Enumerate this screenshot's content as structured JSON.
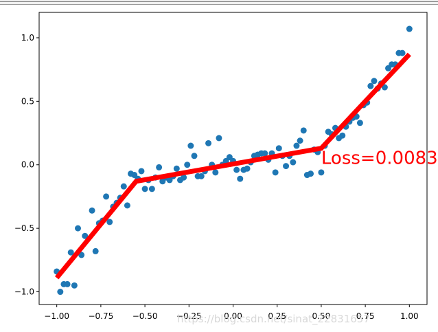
{
  "chart_data": {
    "type": "scatter",
    "title": "",
    "xlabel": "",
    "ylabel": "",
    "xlim": [
      -1.1,
      1.1
    ],
    "ylim": [
      -1.1,
      1.2
    ],
    "x_ticks": [
      "−1.00",
      "−0.75",
      "−0.50",
      "−0.25",
      "0.00",
      "0.25",
      "0.50",
      "0.75",
      "1.00"
    ],
    "x_tick_values": [
      -1.0,
      -0.75,
      -0.5,
      -0.25,
      0.0,
      0.25,
      0.5,
      0.75,
      1.0
    ],
    "y_ticks": [
      "−1.0",
      "−0.5",
      "0.0",
      "0.5",
      "1.0"
    ],
    "y_tick_values": [
      -1.0,
      -0.5,
      0.0,
      0.5,
      1.0
    ],
    "grid": false,
    "scatter": {
      "color": "#1f77b4",
      "points": [
        [
          -1.0,
          -0.84
        ],
        [
          -0.98,
          -1.0
        ],
        [
          -0.96,
          -0.94
        ],
        [
          -0.94,
          -0.94
        ],
        [
          -0.92,
          -0.69
        ],
        [
          -0.9,
          -0.95
        ],
        [
          -0.88,
          -0.5
        ],
        [
          -0.86,
          -0.71
        ],
        [
          -0.84,
          -0.56
        ],
        [
          -0.8,
          -0.36
        ],
        [
          -0.78,
          -0.68
        ],
        [
          -0.76,
          -0.46
        ],
        [
          -0.74,
          -0.44
        ],
        [
          -0.72,
          -0.25
        ],
        [
          -0.7,
          -0.45
        ],
        [
          -0.68,
          -0.33
        ],
        [
          -0.66,
          -0.3
        ],
        [
          -0.64,
          -0.26
        ],
        [
          -0.62,
          -0.17
        ],
        [
          -0.6,
          -0.32
        ],
        [
          -0.58,
          -0.07
        ],
        [
          -0.56,
          -0.08
        ],
        [
          -0.54,
          -0.11
        ],
        [
          -0.52,
          -0.05
        ],
        [
          -0.5,
          -0.19
        ],
        [
          -0.48,
          -0.12
        ],
        [
          -0.46,
          -0.19
        ],
        [
          -0.44,
          -0.1
        ],
        [
          -0.42,
          -0.02
        ],
        [
          -0.4,
          -0.13
        ],
        [
          -0.38,
          -0.1
        ],
        [
          -0.36,
          -0.12
        ],
        [
          -0.34,
          -0.09
        ],
        [
          -0.32,
          -0.03
        ],
        [
          -0.3,
          -0.12
        ],
        [
          -0.28,
          -0.1
        ],
        [
          -0.26,
          0.0
        ],
        [
          -0.24,
          0.15
        ],
        [
          -0.22,
          0.07
        ],
        [
          -0.2,
          -0.09
        ],
        [
          -0.18,
          -0.09
        ],
        [
          -0.16,
          -0.05
        ],
        [
          -0.14,
          0.17
        ],
        [
          -0.12,
          0.0
        ],
        [
          -0.1,
          -0.06
        ],
        [
          -0.08,
          0.21
        ],
        [
          -0.06,
          0.0
        ],
        [
          -0.04,
          0.03
        ],
        [
          -0.02,
          0.06
        ],
        [
          0.0,
          0.03
        ],
        [
          0.02,
          -0.04
        ],
        [
          0.04,
          -0.11
        ],
        [
          0.06,
          -0.04
        ],
        [
          0.08,
          -0.03
        ],
        [
          0.1,
          0.02
        ],
        [
          0.12,
          0.07
        ],
        [
          0.14,
          0.08
        ],
        [
          0.16,
          0.09
        ],
        [
          0.18,
          0.09
        ],
        [
          0.2,
          0.04
        ],
        [
          0.22,
          0.09
        ],
        [
          0.24,
          -0.06
        ],
        [
          0.26,
          0.13
        ],
        [
          0.28,
          0.07
        ],
        [
          0.3,
          -0.01
        ],
        [
          0.32,
          0.07
        ],
        [
          0.34,
          0.02
        ],
        [
          0.36,
          0.15
        ],
        [
          0.38,
          0.19
        ],
        [
          0.4,
          0.27
        ],
        [
          0.42,
          -0.08
        ],
        [
          0.44,
          -0.07
        ],
        [
          0.46,
          0.12
        ],
        [
          0.48,
          0.1
        ],
        [
          0.5,
          -0.06
        ],
        [
          0.52,
          0.15
        ],
        [
          0.54,
          0.26
        ],
        [
          0.56,
          0.24
        ],
        [
          0.58,
          0.29
        ],
        [
          0.6,
          0.21
        ],
        [
          0.62,
          0.23
        ],
        [
          0.64,
          0.3
        ],
        [
          0.66,
          0.34
        ],
        [
          0.68,
          0.37
        ],
        [
          0.7,
          0.38
        ],
        [
          0.72,
          0.33
        ],
        [
          0.74,
          0.47
        ],
        [
          0.76,
          0.49
        ],
        [
          0.78,
          0.62
        ],
        [
          0.8,
          0.66
        ],
        [
          0.82,
          0.6
        ],
        [
          0.84,
          0.64
        ],
        [
          0.86,
          0.61
        ],
        [
          0.88,
          0.76
        ],
        [
          0.9,
          0.79
        ],
        [
          0.92,
          0.79
        ],
        [
          0.94,
          0.88
        ],
        [
          0.96,
          0.88
        ],
        [
          1.0,
          1.07
        ]
      ]
    },
    "fit_line": {
      "color": "#ff0000",
      "points": [
        [
          -1.0,
          -0.89
        ],
        [
          -0.55,
          -0.13
        ],
        [
          0.5,
          0.13
        ],
        [
          1.0,
          0.87
        ]
      ]
    },
    "annotation": {
      "text": "Loss=0.0083",
      "x": 0.5,
      "y": 0.0,
      "color": "#ff0000"
    }
  },
  "watermark": "https://blog.csdn.net/sinat_22831657"
}
